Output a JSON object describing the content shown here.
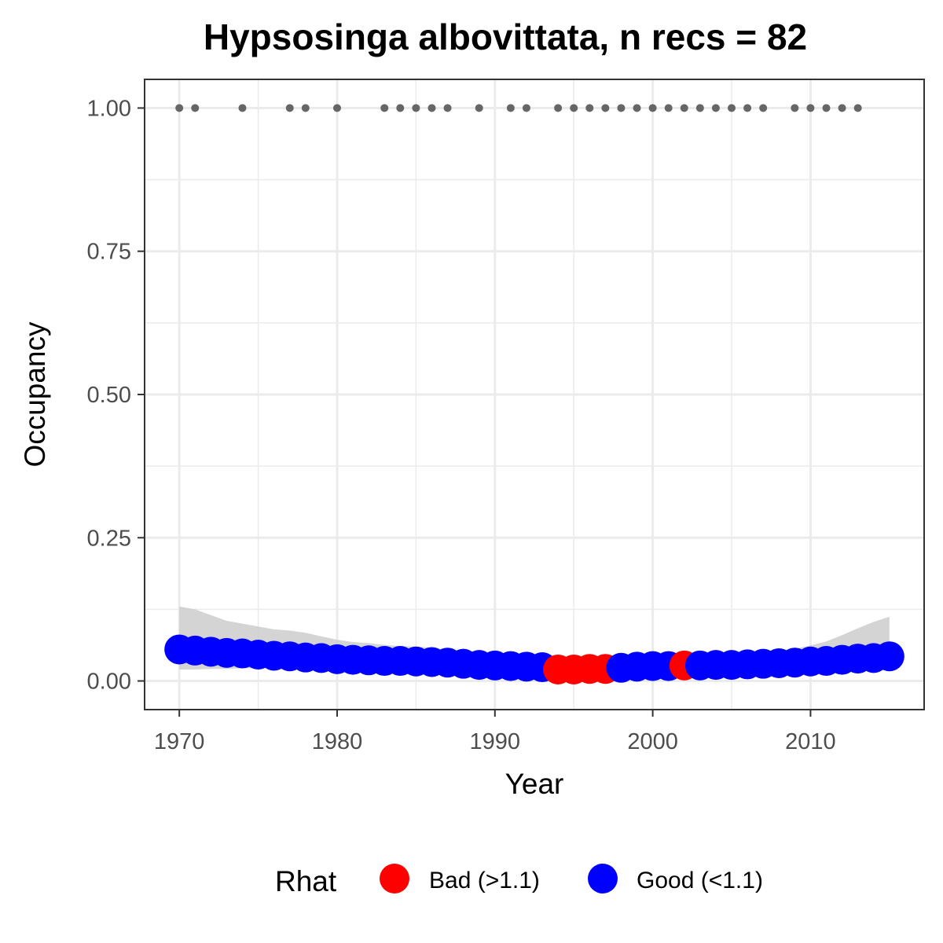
{
  "chart_data": {
    "type": "scatter",
    "title": "Hypsosinga albovittata, n recs = 82",
    "xlabel": "Year",
    "ylabel": "Occupancy",
    "xlim": [
      1967.8,
      2017.2
    ],
    "ylim": [
      -0.05,
      1.05
    ],
    "x_ticks": [
      1970,
      1980,
      1990,
      2000,
      2010
    ],
    "y_ticks": [
      0,
      0.25,
      0.5,
      0.75,
      1.0
    ],
    "y_tick_labels": [
      "0.00",
      "0.25",
      "0.50",
      "0.75",
      "1.00"
    ],
    "grid": true,
    "legend": {
      "title": "Rhat",
      "placement": "bottom",
      "entries": [
        {
          "label": "Bad (>1.1)",
          "color": "#ff0000"
        },
        {
          "label": "Good (<1.1)",
          "color": "#0000ff"
        }
      ]
    },
    "colors": {
      "bad": "#ff0000",
      "good": "#0000ff",
      "record": "#666666",
      "ribbon": "#cccccc"
    },
    "records": {
      "y": 1.0,
      "years": [
        1970,
        1971,
        1974,
        1977,
        1978,
        1980,
        1983,
        1984,
        1985,
        1986,
        1987,
        1989,
        1991,
        1992,
        1994,
        1995,
        1996,
        1997,
        1998,
        1999,
        2000,
        2001,
        2002,
        2003,
        2004,
        2005,
        2006,
        2007,
        2009,
        2010,
        2011,
        2012,
        2013
      ]
    },
    "series": [
      {
        "x": [
          1970,
          1971,
          1972,
          1973,
          1974,
          1975,
          1976,
          1977,
          1978,
          1979,
          1980,
          1981,
          1982,
          1983,
          1984,
          1985,
          1986,
          1987,
          1988,
          1989,
          1990,
          1991,
          1992,
          1993,
          1994,
          1995,
          1996,
          1997,
          1998,
          1999,
          2000,
          2001,
          2002,
          2003,
          2004,
          2005,
          2006,
          2007,
          2008,
          2009,
          2010,
          2011,
          2012,
          2013,
          2014,
          2015
        ],
        "y": [
          0.055,
          0.053,
          0.051,
          0.049,
          0.048,
          0.046,
          0.044,
          0.043,
          0.041,
          0.04,
          0.038,
          0.037,
          0.036,
          0.035,
          0.035,
          0.034,
          0.033,
          0.032,
          0.03,
          0.028,
          0.027,
          0.026,
          0.025,
          0.024,
          0.02,
          0.02,
          0.021,
          0.021,
          0.023,
          0.025,
          0.026,
          0.026,
          0.027,
          0.027,
          0.028,
          0.028,
          0.029,
          0.03,
          0.031,
          0.032,
          0.034,
          0.035,
          0.037,
          0.039,
          0.04,
          0.043
        ],
        "lower": [
          0.02,
          0.02,
          0.021,
          0.021,
          0.022,
          0.022,
          0.022,
          0.023,
          0.023,
          0.023,
          0.024,
          0.024,
          0.024,
          0.024,
          0.024,
          0.024,
          0.023,
          0.022,
          0.021,
          0.02,
          0.019,
          0.018,
          0.017,
          0.016,
          0.013,
          0.013,
          0.014,
          0.015,
          0.016,
          0.017,
          0.018,
          0.018,
          0.019,
          0.019,
          0.019,
          0.02,
          0.02,
          0.02,
          0.021,
          0.021,
          0.021,
          0.021,
          0.021,
          0.021,
          0.021,
          0.021
        ],
        "upper": [
          0.13,
          0.125,
          0.115,
          0.105,
          0.1,
          0.095,
          0.09,
          0.088,
          0.084,
          0.078,
          0.072,
          0.068,
          0.066,
          0.063,
          0.061,
          0.06,
          0.058,
          0.055,
          0.05,
          0.045,
          0.042,
          0.04,
          0.038,
          0.036,
          0.032,
          0.032,
          0.033,
          0.034,
          0.036,
          0.039,
          0.041,
          0.042,
          0.043,
          0.044,
          0.045,
          0.046,
          0.048,
          0.05,
          0.052,
          0.056,
          0.062,
          0.069,
          0.08,
          0.092,
          0.103,
          0.112
        ],
        "rhat": [
          "good",
          "good",
          "good",
          "good",
          "good",
          "good",
          "good",
          "good",
          "good",
          "good",
          "good",
          "good",
          "good",
          "good",
          "good",
          "good",
          "good",
          "good",
          "good",
          "good",
          "good",
          "good",
          "good",
          "good",
          "bad",
          "bad",
          "bad",
          "bad",
          "good",
          "good",
          "good",
          "good",
          "bad",
          "good",
          "good",
          "good",
          "good",
          "good",
          "good",
          "good",
          "good",
          "good",
          "good",
          "good",
          "good",
          "good"
        ]
      }
    ]
  }
}
